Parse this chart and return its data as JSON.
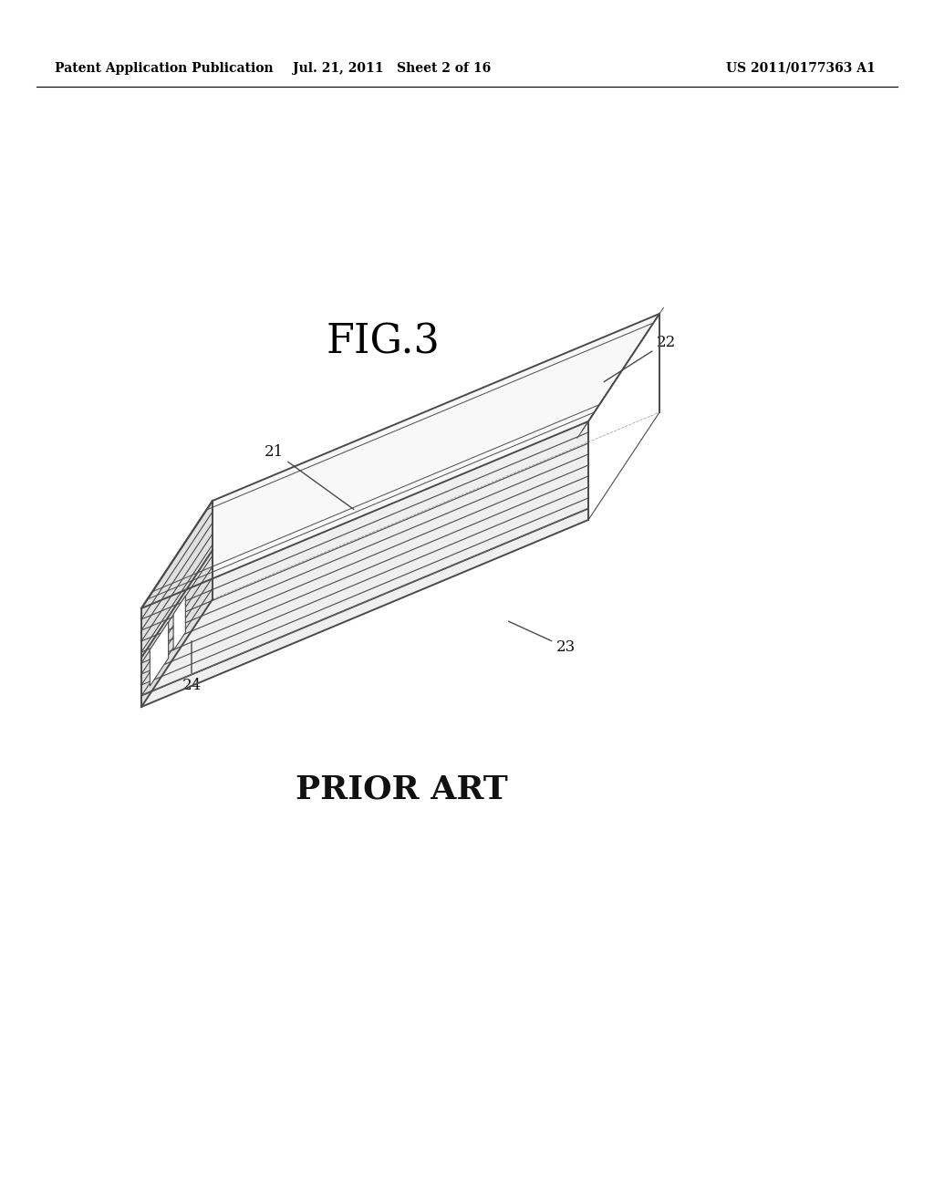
{
  "bg_color": "#ffffff",
  "header_left": "Patent Application Publication",
  "header_mid": "Jul. 21, 2011   Sheet 2 of 16",
  "header_right": "US 2011/0177363 A1",
  "fig_label": "FIG.3",
  "prior_art_label": "PRIOR ART",
  "line_color": "#4a4a4a",
  "text_color": "#111111",
  "fig_label_fontsize": 32,
  "prior_art_fontsize": 26,
  "header_fontsize": 10
}
